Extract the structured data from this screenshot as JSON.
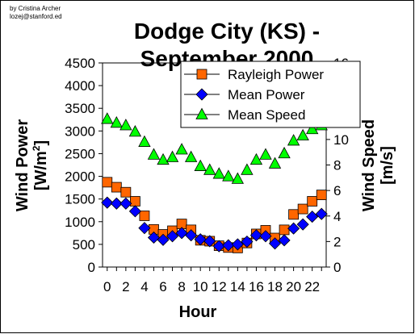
{
  "credit": {
    "line1": "by Cristina Archer",
    "line2": "lozej@stanford.ed"
  },
  "chart_data": {
    "type": "scatter",
    "title": "Dodge City (KS) - September 2000",
    "title_lines": [
      "Dodge City (KS) -",
      "September 2000"
    ],
    "xlabel": "Hour",
    "ylabel_left": "Wind Power [W/m²]",
    "ylabel_left_lines": [
      "Wind Power",
      "[W/m",
      "2",
      "]"
    ],
    "ylabel_right": "Wind Speed [m/s]",
    "ylabel_right_lines": [
      "Wind Speed",
      "[m/s]"
    ],
    "x": [
      0,
      1,
      2,
      3,
      4,
      5,
      6,
      7,
      8,
      9,
      10,
      11,
      12,
      13,
      14,
      15,
      16,
      17,
      18,
      19,
      20,
      21,
      22,
      23
    ],
    "xlim": [
      -0.5,
      23.5
    ],
    "xticks": [
      0,
      2,
      4,
      6,
      8,
      10,
      12,
      14,
      16,
      18,
      20,
      22
    ],
    "ylim_left": [
      0,
      4500
    ],
    "yticks_left": [
      0,
      500,
      1000,
      1500,
      2000,
      2500,
      3000,
      3500,
      4000,
      4500
    ],
    "ylim_right": [
      0,
      16
    ],
    "yticks_right": [
      0,
      2,
      4,
      6,
      8,
      10,
      12,
      14,
      16
    ],
    "grid": false,
    "legend_position": "top-right",
    "series": [
      {
        "name": "Rayleigh Power",
        "axis": "left",
        "marker": "square",
        "color": "#ff6600",
        "values": [
          1870,
          1760,
          1650,
          1450,
          1130,
          830,
          720,
          800,
          950,
          820,
          590,
          570,
          470,
          430,
          420,
          530,
          730,
          810,
          640,
          820,
          1160,
          1280,
          1450,
          1590
        ]
      },
      {
        "name": "Mean Power",
        "axis": "left",
        "marker": "diamond",
        "color": "#0000ff",
        "values": [
          1420,
          1400,
          1400,
          1230,
          860,
          650,
          600,
          680,
          750,
          700,
          610,
          570,
          460,
          480,
          500,
          560,
          700,
          680,
          520,
          590,
          850,
          940,
          1110,
          1170
        ]
      },
      {
        "name": "Mean Speed",
        "axis": "right",
        "marker": "triangle",
        "color": "#00ff00",
        "values": [
          11.6,
          11.3,
          11.1,
          10.6,
          9.8,
          8.8,
          8.4,
          8.6,
          9.2,
          8.6,
          7.9,
          7.6,
          7.3,
          7.1,
          6.9,
          7.6,
          8.4,
          8.8,
          8.1,
          8.9,
          9.9,
          10.3,
          10.8,
          11.1
        ]
      }
    ]
  }
}
